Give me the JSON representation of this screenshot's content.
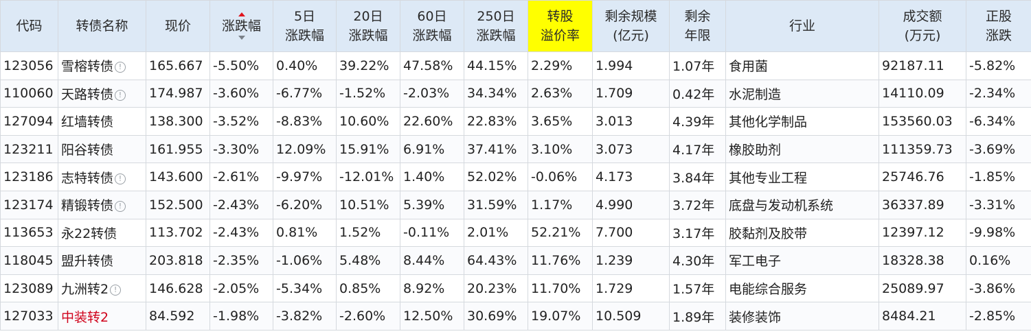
{
  "headers": {
    "code": "代码",
    "name": "转债名称",
    "price": "现价",
    "change": "涨跌幅",
    "d5": [
      "5日",
      "涨跌幅"
    ],
    "d20": [
      "20日",
      "涨跌幅"
    ],
    "d60": [
      "60日",
      "涨跌幅"
    ],
    "d250": [
      "250日",
      "涨跌幅"
    ],
    "premium": [
      "转股",
      "溢价率"
    ],
    "remaining_scale": [
      "剩余规模",
      "(亿元)"
    ],
    "remaining_years": [
      "剩余",
      "年限"
    ],
    "industry": "行业",
    "turnover": [
      "成交额",
      "(万元)"
    ],
    "stock_change": [
      "正股",
      "涨跌"
    ]
  },
  "colors": {
    "up": "#e0141e",
    "down": "#1e8e1e",
    "code_link": "#1f6db4",
    "header_bg": "#dde9f6",
    "highlight": "#ffff00"
  },
  "rows": [
    {
      "code": "123056",
      "name": "雪榕转债",
      "info": true,
      "name_red": false,
      "price": "165.667",
      "change": "-5.50%",
      "d5": "0.40%",
      "d20": "39.22%",
      "d60": "47.58%",
      "d250": "44.15%",
      "premium": "2.29%",
      "scale": "1.994",
      "years": "1.07年",
      "industry": "食用菌",
      "turnover": "92187.11",
      "stock": "-5.82%"
    },
    {
      "code": "110060",
      "name": "天路转债",
      "info": true,
      "name_red": false,
      "price": "174.987",
      "change": "-3.60%",
      "d5": "-6.77%",
      "d20": "-1.52%",
      "d60": "-2.03%",
      "d250": "34.34%",
      "premium": "2.63%",
      "scale": "1.709",
      "years": "0.42年",
      "industry": "水泥制造",
      "turnover": "14110.09",
      "stock": "-2.34%"
    },
    {
      "code": "127094",
      "name": "红墙转债",
      "info": false,
      "name_red": false,
      "price": "138.300",
      "change": "-3.52%",
      "d5": "-8.83%",
      "d20": "10.60%",
      "d60": "22.60%",
      "d250": "22.83%",
      "premium": "3.65%",
      "scale": "3.013",
      "years": "4.39年",
      "industry": "其他化学制品",
      "turnover": "153560.03",
      "stock": "-6.34%"
    },
    {
      "code": "123211",
      "name": "阳谷转债",
      "info": false,
      "name_red": false,
      "price": "161.955",
      "change": "-3.30%",
      "d5": "12.09%",
      "d20": "15.91%",
      "d60": "6.91%",
      "d250": "37.41%",
      "premium": "3.10%",
      "scale": "3.073",
      "years": "4.17年",
      "industry": "橡胶助剂",
      "turnover": "111359.73",
      "stock": "-3.69%"
    },
    {
      "code": "123186",
      "name": "志特转债",
      "info": true,
      "name_red": false,
      "price": "143.600",
      "change": "-2.61%",
      "d5": "-9.97%",
      "d20": "-12.01%",
      "d60": "1.40%",
      "d250": "52.02%",
      "premium": "-0.06%",
      "scale": "4.173",
      "years": "3.84年",
      "industry": "其他专业工程",
      "turnover": "25746.76",
      "stock": "-1.85%"
    },
    {
      "code": "123174",
      "name": "精锻转债",
      "info": true,
      "name_red": false,
      "price": "152.500",
      "change": "-2.43%",
      "d5": "-6.20%",
      "d20": "10.51%",
      "d60": "5.39%",
      "d250": "31.59%",
      "premium": "1.17%",
      "scale": "4.990",
      "years": "3.72年",
      "industry": "底盘与发动机系统",
      "turnover": "36337.89",
      "stock": "-3.31%"
    },
    {
      "code": "113653",
      "name": "永22转债",
      "info": false,
      "name_red": false,
      "price": "113.702",
      "change": "-2.43%",
      "d5": "0.81%",
      "d20": "1.52%",
      "d60": "-0.11%",
      "d250": "2.01%",
      "premium": "52.21%",
      "scale": "7.700",
      "years": "3.17年",
      "industry": "胶黏剂及胶带",
      "turnover": "12397.12",
      "stock": "-9.98%"
    },
    {
      "code": "118045",
      "name": "盟升转债",
      "info": false,
      "name_red": false,
      "price": "203.818",
      "change": "-2.35%",
      "d5": "-1.06%",
      "d20": "5.48%",
      "d60": "8.44%",
      "d250": "64.43%",
      "premium": "11.76%",
      "scale": "1.239",
      "years": "4.30年",
      "industry": "军工电子",
      "turnover": "18328.38",
      "stock": "0.16%"
    },
    {
      "code": "123089",
      "name": "九洲转2",
      "info": true,
      "name_red": false,
      "price": "146.628",
      "change": "-2.05%",
      "d5": "-5.34%",
      "d20": "0.85%",
      "d60": "8.92%",
      "d250": "20.23%",
      "premium": "11.70%",
      "scale": "1.729",
      "years": "1.57年",
      "industry": "电能综合服务",
      "turnover": "25089.97",
      "stock": "-3.86%"
    },
    {
      "code": "127033",
      "name": "中装转2",
      "info": false,
      "name_red": true,
      "price": "84.592",
      "change": "-1.98%",
      "d5": "-3.82%",
      "d20": "-2.60%",
      "d60": "12.50%",
      "d250": "30.69%",
      "premium": "19.07%",
      "scale": "10.509",
      "years": "1.89年",
      "industry": "装修装饰",
      "turnover": "8484.21",
      "stock": "-2.85%"
    }
  ]
}
